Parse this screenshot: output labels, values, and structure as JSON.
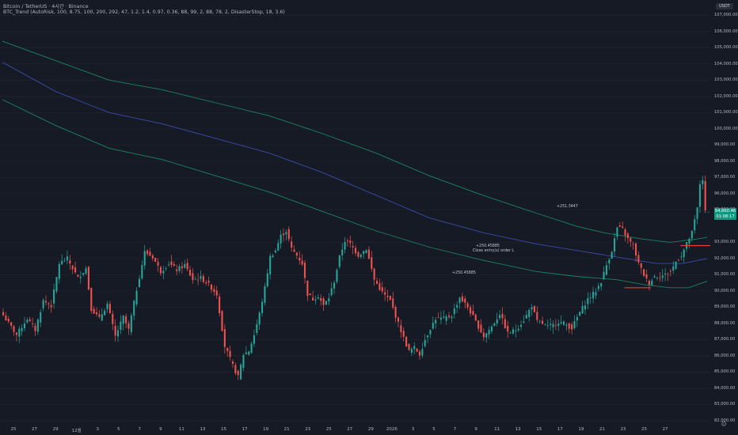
{
  "header": {
    "symbol_line": "Bitcoin / TetherUS · 4시간 · Binance",
    "indicator_line": "BTC_Trend (AutoRisk, 100, 8.75, 100, 200, 292, 47, 1.2, 1.4, 0.97, 0.36, 88, 99, 2, 88, 78, 2, DisasterStop, 18, 3.6)"
  },
  "price_axis": {
    "currency": "USDT",
    "last_price": "94,860.46",
    "countdown": "01:08:17"
  },
  "annotations": {
    "pnl_1": "+250.45885",
    "pnl_2": "+250.45885",
    "close_order": "Close entry(s) order L",
    "pnl_3": "+251.3447"
  },
  "settings_icon": "gear-icon",
  "colors": {
    "up": "#26a69a",
    "down": "#ef5350",
    "mid_band": "#3f51b5",
    "outer_band": "#1b8f6b",
    "stop_line": "#ef3a3a"
  },
  "chart_data": {
    "type": "candlestick",
    "title": "Bitcoin / TetherUS · 4시간 · Binance",
    "ylim": [
      82000,
      107500
    ],
    "y_ticks": [
      {
        "value": 107000,
        "label": "107,000.00"
      },
      {
        "value": 106000,
        "label": "106,000.00"
      },
      {
        "value": 105000,
        "label": "105,000.00"
      },
      {
        "value": 104000,
        "label": "104,000.00"
      },
      {
        "value": 103000,
        "label": "103,000.00"
      },
      {
        "value": 102000,
        "label": "102,000.00"
      },
      {
        "value": 101000,
        "label": "101,000.00"
      },
      {
        "value": 100000,
        "label": "100,000.00"
      },
      {
        "value": 99000,
        "label": "99,000.00"
      },
      {
        "value": 98000,
        "label": "98,000.00"
      },
      {
        "value": 97000,
        "label": "97,000.00"
      },
      {
        "value": 96000,
        "label": "96,000.00"
      },
      {
        "value": 95000,
        "label": "95,000.00"
      },
      {
        "value": 93000,
        "label": "93,000.00"
      },
      {
        "value": 92000,
        "label": "92,000.00"
      },
      {
        "value": 91000,
        "label": "91,000.00"
      },
      {
        "value": 90000,
        "label": "90,000.00"
      },
      {
        "value": 89000,
        "label": "89,000.00"
      },
      {
        "value": 88000,
        "label": "88,000.00"
      },
      {
        "value": 87000,
        "label": "87,000.00"
      },
      {
        "value": 86000,
        "label": "86,000.00"
      },
      {
        "value": 85000,
        "label": "85,000.00"
      },
      {
        "value": 84000,
        "label": "84,000.00"
      },
      {
        "value": 83000,
        "label": "83,000.00"
      },
      {
        "value": 82000,
        "label": "82,000.00"
      }
    ],
    "x_ticks": [
      "25",
      "27",
      "29",
      "12월",
      "3",
      "5",
      "7",
      "9",
      "11",
      "13",
      "15",
      "17",
      "19",
      "21",
      "23",
      "25",
      "27",
      "29",
      "2026",
      "3",
      "5",
      "7",
      "9",
      "11",
      "13",
      "15",
      "17",
      "19",
      "21",
      "23",
      "25",
      "27"
    ],
    "x_count": 264,
    "close_path": [
      [
        0,
        88500
      ],
      [
        5,
        87300
      ],
      [
        9,
        88300
      ],
      [
        12,
        87600
      ],
      [
        15,
        89400
      ],
      [
        18,
        89100
      ],
      [
        21,
        91700
      ],
      [
        24,
        92000
      ],
      [
        28,
        90800
      ],
      [
        31,
        91400
      ],
      [
        33,
        88900
      ],
      [
        36,
        88300
      ],
      [
        39,
        89200
      ],
      [
        42,
        87200
      ],
      [
        45,
        88400
      ],
      [
        47,
        87600
      ],
      [
        50,
        90100
      ],
      [
        53,
        92400
      ],
      [
        56,
        92100
      ],
      [
        59,
        91200
      ],
      [
        62,
        91700
      ],
      [
        65,
        91300
      ],
      [
        68,
        91600
      ],
      [
        71,
        90700
      ],
      [
        74,
        90800
      ],
      [
        77,
        90400
      ],
      [
        80,
        89800
      ],
      [
        83,
        86600
      ],
      [
        86,
        85400
      ],
      [
        88,
        84700
      ],
      [
        90,
        86100
      ],
      [
        92,
        86300
      ],
      [
        94,
        87300
      ],
      [
        96,
        88600
      ],
      [
        98,
        90200
      ],
      [
        100,
        92100
      ],
      [
        102,
        92500
      ],
      [
        104,
        93400
      ],
      [
        106,
        93700
      ],
      [
        108,
        92600
      ],
      [
        110,
        92200
      ],
      [
        112,
        91700
      ],
      [
        114,
        89800
      ],
      [
        116,
        89500
      ],
      [
        118,
        89700
      ],
      [
        120,
        89100
      ],
      [
        122,
        89600
      ],
      [
        124,
        90600
      ],
      [
        126,
        92100
      ],
      [
        128,
        93100
      ],
      [
        130,
        92900
      ],
      [
        133,
        92200
      ],
      [
        136,
        92600
      ],
      [
        139,
        90700
      ],
      [
        142,
        89900
      ],
      [
        145,
        89400
      ],
      [
        148,
        88000
      ],
      [
        150,
        87100
      ],
      [
        152,
        86300
      ],
      [
        154,
        86500
      ],
      [
        156,
        86100
      ],
      [
        158,
        87000
      ],
      [
        160,
        87700
      ],
      [
        162,
        88300
      ],
      [
        165,
        88300
      ],
      [
        168,
        88500
      ],
      [
        171,
        89600
      ],
      [
        174,
        89000
      ],
      [
        177,
        88100
      ],
      [
        180,
        87200
      ],
      [
        183,
        87800
      ],
      [
        186,
        88600
      ],
      [
        189,
        87400
      ],
      [
        192,
        87600
      ],
      [
        195,
        88200
      ],
      [
        198,
        89100
      ],
      [
        200,
        88100
      ],
      [
        202,
        88000
      ],
      [
        204,
        87800
      ],
      [
        206,
        87900
      ],
      [
        208,
        88100
      ],
      [
        210,
        88000
      ],
      [
        213,
        87700
      ],
      [
        216,
        88700
      ],
      [
        219,
        89500
      ],
      [
        222,
        90000
      ],
      [
        224,
        90600
      ],
      [
        226,
        91600
      ],
      [
        228,
        92500
      ],
      [
        230,
        93900
      ],
      [
        232,
        93800
      ],
      [
        234,
        93200
      ],
      [
        236,
        92800
      ],
      [
        238,
        91700
      ],
      [
        240,
        91000
      ],
      [
        241,
        90700
      ],
      [
        242,
        90500
      ],
      [
        244,
        90900
      ],
      [
        246,
        90900
      ],
      [
        248,
        91000
      ],
      [
        250,
        91200
      ],
      [
        252,
        91800
      ],
      [
        254,
        92200
      ],
      [
        256,
        92900
      ],
      [
        258,
        93600
      ],
      [
        260,
        95100
      ],
      [
        261,
        96600
      ],
      [
        262,
        96900
      ],
      [
        263,
        94860
      ]
    ],
    "bands": [
      {
        "name": "",
        "color": "#1b8f6b",
        "points": [
          [
            0,
            105400
          ],
          [
            20,
            104200
          ],
          [
            40,
            103000
          ],
          [
            60,
            102400
          ],
          [
            80,
            101600
          ],
          [
            100,
            100800
          ],
          [
            120,
            99700
          ],
          [
            140,
            98500
          ],
          [
            160,
            97100
          ],
          [
            180,
            95900
          ],
          [
            200,
            94800
          ],
          [
            215,
            94000
          ],
          [
            225,
            93600
          ],
          [
            240,
            93200
          ],
          [
            250,
            93000
          ],
          [
            260,
            93200
          ],
          [
            264,
            93300
          ]
        ]
      },
      {
        "name": "",
        "color": "#3f51b5",
        "points": [
          [
            0,
            104100
          ],
          [
            20,
            102300
          ],
          [
            40,
            101000
          ],
          [
            60,
            100300
          ],
          [
            80,
            99400
          ],
          [
            100,
            98500
          ],
          [
            120,
            97300
          ],
          [
            140,
            95900
          ],
          [
            160,
            94500
          ],
          [
            180,
            93600
          ],
          [
            200,
            92900
          ],
          [
            215,
            92500
          ],
          [
            230,
            92100
          ],
          [
            245,
            91700
          ],
          [
            255,
            91700
          ],
          [
            264,
            92000
          ]
        ]
      },
      {
        "name": "",
        "color": "#1b8f6b",
        "points": [
          [
            0,
            101800
          ],
          [
            20,
            100200
          ],
          [
            40,
            98800
          ],
          [
            60,
            98100
          ],
          [
            80,
            97100
          ],
          [
            100,
            96100
          ],
          [
            120,
            94900
          ],
          [
            140,
            93700
          ],
          [
            160,
            92700
          ],
          [
            180,
            91900
          ],
          [
            200,
            91200
          ],
          [
            215,
            90900
          ],
          [
            230,
            90700
          ],
          [
            240,
            90400
          ],
          [
            250,
            90200
          ],
          [
            257,
            90200
          ],
          [
            264,
            90600
          ]
        ]
      }
    ],
    "stop_segments": [
      {
        "x0": 233,
        "x1": 243,
        "y": 90200
      },
      {
        "x0": 254,
        "x1": 266,
        "y": 92800
      }
    ]
  }
}
